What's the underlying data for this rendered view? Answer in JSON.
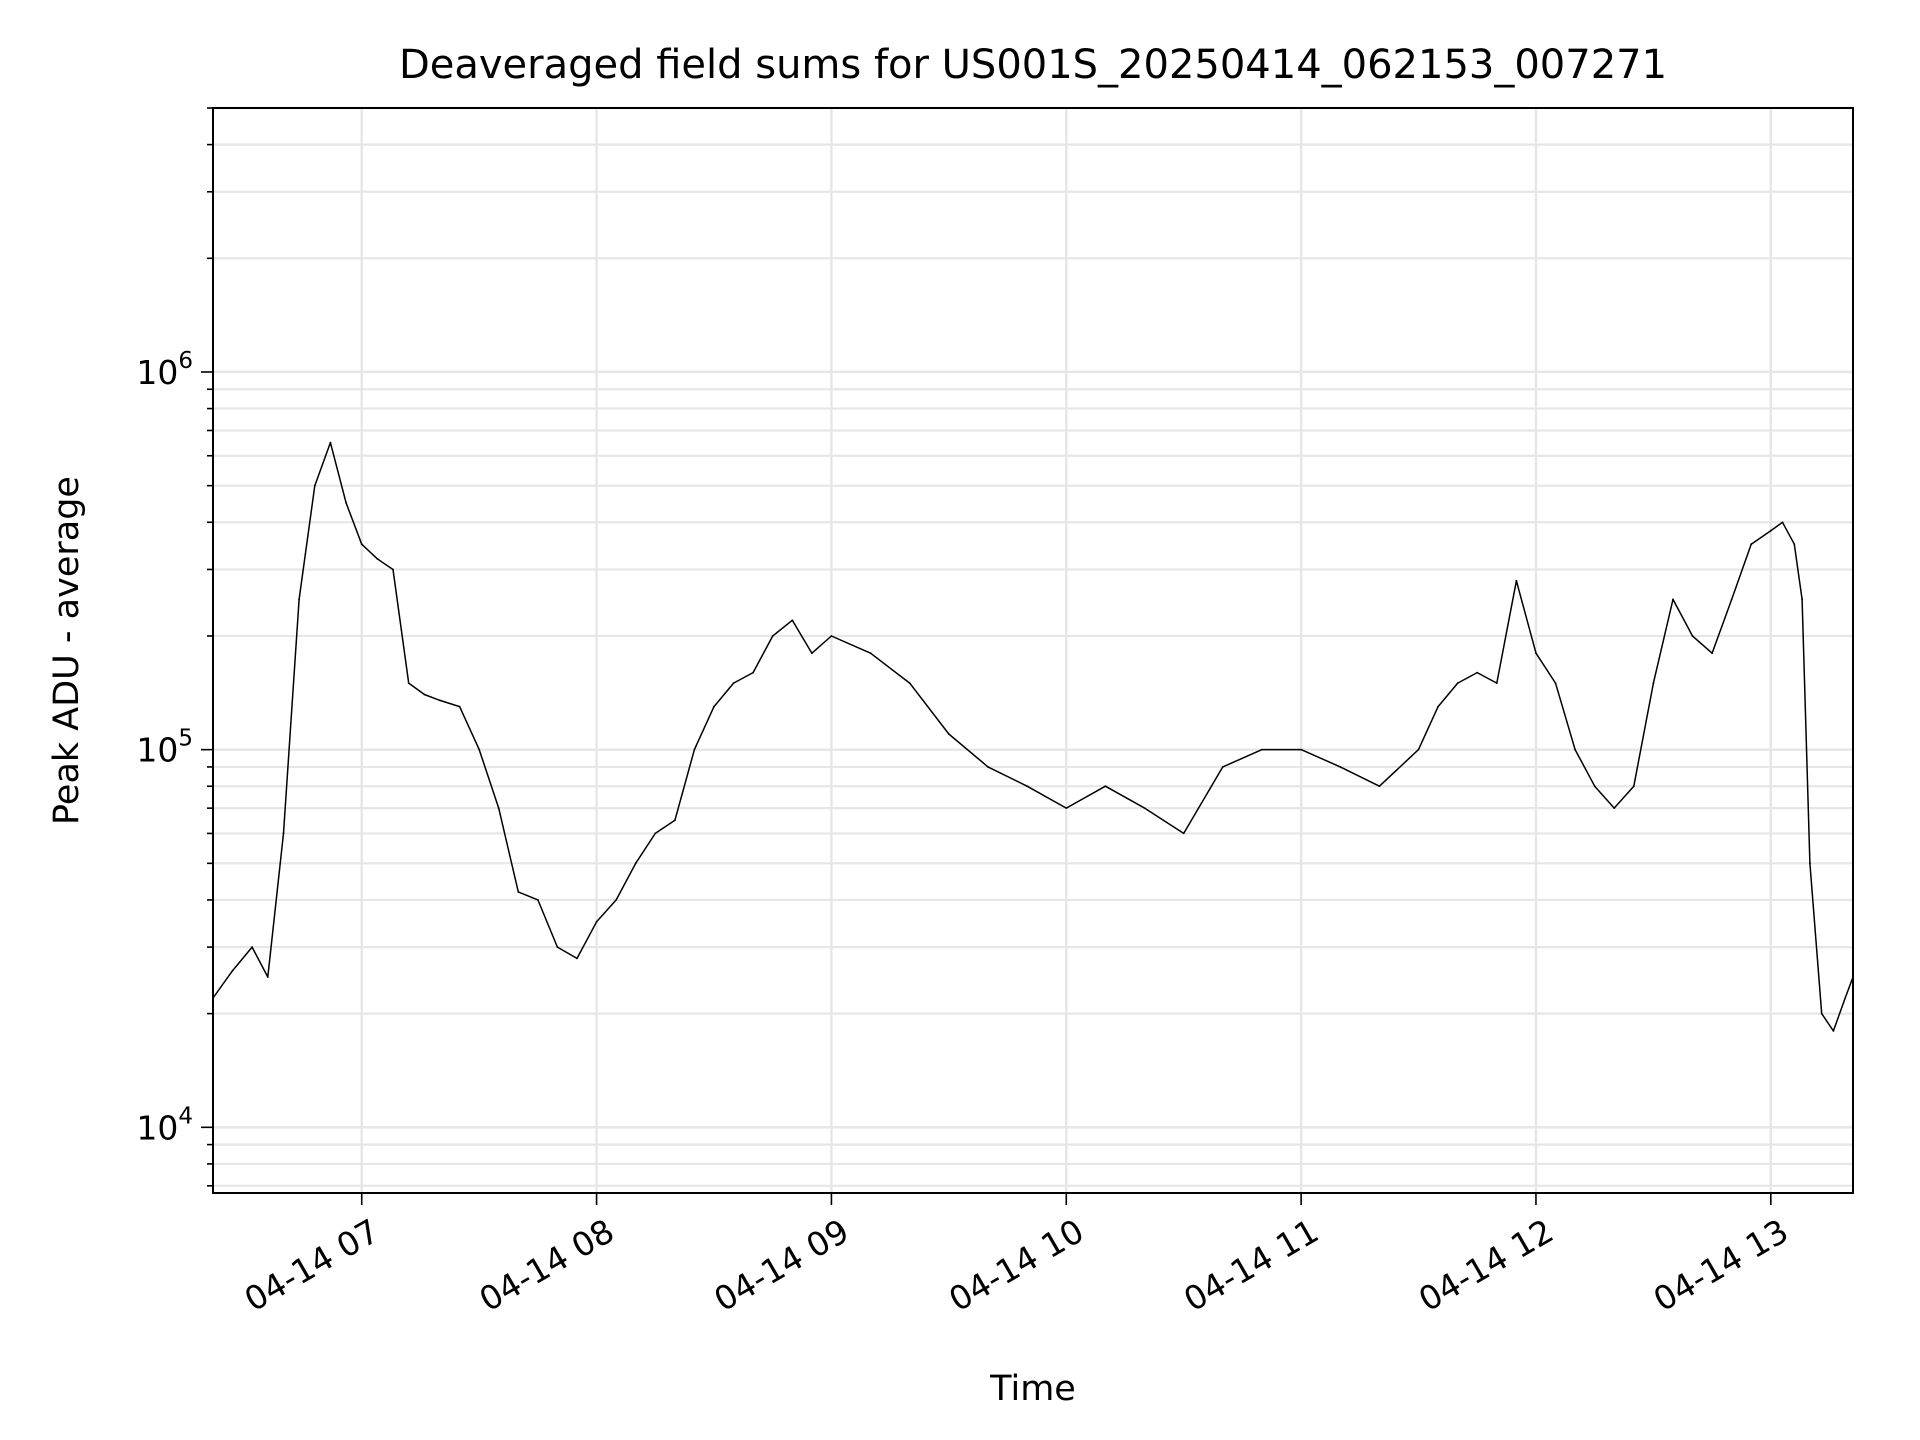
{
  "chart_data": {
    "type": "line",
    "title": "Deaveraged field sums for US001S_20250414_062153_007271",
    "xlabel": "Time",
    "ylabel": "Peak ADU - average",
    "yscale": "log",
    "xlim": [
      "04-14 06:22",
      "04-14 13:21"
    ],
    "ylim": [
      6700,
      5000000
    ],
    "x_ticks": [
      {
        "time": "04-14 07:00",
        "label": "04-14 07"
      },
      {
        "time": "04-14 08:00",
        "label": "04-14 08"
      },
      {
        "time": "04-14 09:00",
        "label": "04-14 09"
      },
      {
        "time": "04-14 10:00",
        "label": "04-14 10"
      },
      {
        "time": "04-14 11:00",
        "label": "04-14 11"
      },
      {
        "time": "04-14 12:00",
        "label": "04-14 12"
      },
      {
        "time": "04-14 13:00",
        "label": "04-14 13"
      }
    ],
    "y_ticks": [
      {
        "value": 10000,
        "base": "10",
        "exp": "4"
      },
      {
        "value": 100000,
        "base": "10",
        "exp": "5"
      },
      {
        "value": 1000000,
        "base": "10",
        "exp": "6"
      }
    ],
    "grid": true,
    "grid_minor_y": true,
    "line_color": "#000000",
    "grid_color": "#e6e6e6",
    "series": [
      {
        "x": [
          "04-14 06:22",
          "04-14 06:27",
          "04-14 06:32",
          "04-14 06:36",
          "04-14 06:40",
          "04-14 06:44",
          "04-14 06:48",
          "04-14 06:52",
          "04-14 06:56",
          "04-14 07:00",
          "04-14 07:04",
          "04-14 07:08",
          "04-14 07:12",
          "04-14 07:16",
          "04-14 07:20",
          "04-14 07:25",
          "04-14 07:30",
          "04-14 07:35",
          "04-14 07:40",
          "04-14 07:45",
          "04-14 07:50",
          "04-14 07:55",
          "04-14 08:00",
          "04-14 08:05",
          "04-14 08:10",
          "04-14 08:15",
          "04-14 08:20",
          "04-14 08:25",
          "04-14 08:30",
          "04-14 08:35",
          "04-14 08:40",
          "04-14 08:45",
          "04-14 08:50",
          "04-14 08:55",
          "04-14 09:00",
          "04-14 09:10",
          "04-14 09:20",
          "04-14 09:30",
          "04-14 09:40",
          "04-14 09:50",
          "04-14 10:00",
          "04-14 10:10",
          "04-14 10:20",
          "04-14 10:30",
          "04-14 10:40",
          "04-14 10:50",
          "04-14 11:00",
          "04-14 11:10",
          "04-14 11:20",
          "04-14 11:30",
          "04-14 11:35",
          "04-14 11:40",
          "04-14 11:45",
          "04-14 11:50",
          "04-14 11:55",
          "04-14 12:00",
          "04-14 12:05",
          "04-14 12:10",
          "04-14 12:15",
          "04-14 12:20",
          "04-14 12:25",
          "04-14 12:30",
          "04-14 12:35",
          "04-14 12:40",
          "04-14 12:45",
          "04-14 12:50",
          "04-14 12:55",
          "04-14 13:00",
          "04-14 13:03",
          "04-14 13:06",
          "04-14 13:08",
          "04-14 13:10",
          "04-14 13:13",
          "04-14 13:16",
          "04-14 13:19",
          "04-14 13:21"
        ],
        "y": [
          22000,
          26000,
          30000,
          25000,
          60000,
          250000,
          500000,
          650000,
          450000,
          350000,
          320000,
          300000,
          150000,
          140000,
          135000,
          130000,
          100000,
          70000,
          42000,
          40000,
          30000,
          28000,
          35000,
          40000,
          50000,
          60000,
          65000,
          100000,
          130000,
          150000,
          160000,
          200000,
          220000,
          180000,
          200000,
          180000,
          150000,
          110000,
          90000,
          80000,
          70000,
          80000,
          70000,
          60000,
          90000,
          100000,
          100000,
          90000,
          80000,
          100000,
          130000,
          150000,
          160000,
          150000,
          280000,
          180000,
          150000,
          100000,
          80000,
          70000,
          80000,
          150000,
          250000,
          200000,
          180000,
          250000,
          350000,
          380000,
          400000,
          350000,
          250000,
          50000,
          20000,
          18000,
          22000,
          25000
        ]
      }
    ]
  }
}
